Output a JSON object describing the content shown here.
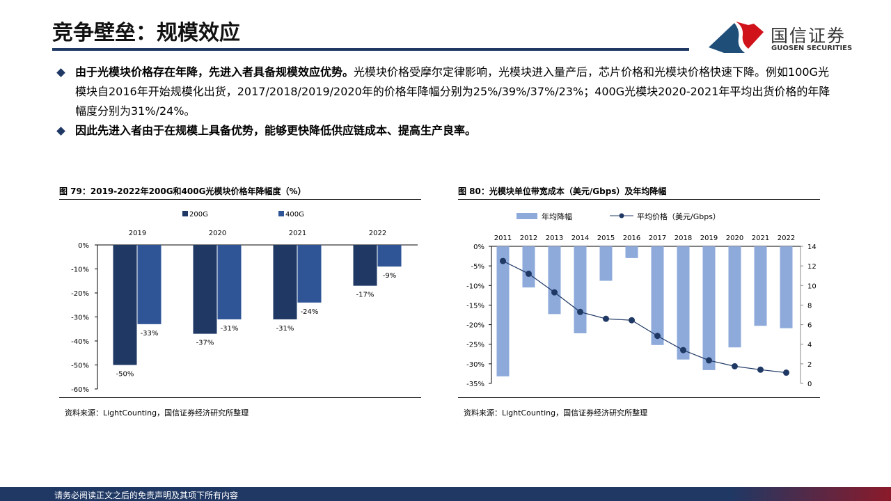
{
  "header": {
    "title": "竞争壁垒：规模效应",
    "logo_cn": "国信证券",
    "logo_en": "GUOSEN SECURITIES"
  },
  "bullets": [
    {
      "bold": "由于光模块价格存在年降，先进入者具备规模效应优势。",
      "text": "光模块价格受摩尔定律影响，光模块进入量产后，芯片价格和光模块价格快速下降。例如100G光模块自2016年开始规模化出货，2017/2018/2019/2020年的价格年降幅分别为25%/39%/37%/23%；400G光模块2020-2021年平均出货价格的年降幅度分别为31%/24%。"
    },
    {
      "bold": "因此先进入者由于在规模上具备优势，能够更快降低供应链成本、提高生产良率。",
      "text": ""
    }
  ],
  "footer": {
    "disclaimer": "请务必阅读正文之后的免责声明及其项下所有内容"
  },
  "colors": {
    "navy": "#1f3864",
    "bar200": "#1f3864",
    "bar400": "#2f5597",
    "bar_light": "#8eaadb",
    "red": "#c00000"
  },
  "chart_data": [
    {
      "type": "bar",
      "title": "图 79：2019-2022年200G和400G光模块价格年降幅度（%）",
      "categories": [
        "2019",
        "2020",
        "2021",
        "2022"
      ],
      "series": [
        {
          "name": "200G",
          "values": [
            -50,
            -37,
            -31,
            -17
          ]
        },
        {
          "name": "400G",
          "values": [
            -33,
            -31,
            -24,
            -9
          ]
        }
      ],
      "data_labels": [
        [
          "-50%",
          "-37%",
          "-31%",
          "-17%"
        ],
        [
          "-33%",
          "-31%",
          "-24%",
          "-9%"
        ]
      ],
      "yticks": [
        "0%",
        "-10%",
        "-20%",
        "-30%",
        "-40%",
        "-50%",
        "-60%"
      ],
      "ylim": [
        -60,
        0
      ],
      "legend": "top",
      "source": "资料来源：LightCounting，国信证券经济研究所整理"
    },
    {
      "type": "bar+line",
      "title": "图 80：光模块单位带宽成本（美元/Gbps）及年均降幅",
      "categories": [
        "2011",
        "2012",
        "2013",
        "2014",
        "2015",
        "2016",
        "2017",
        "2018",
        "2019",
        "2020",
        "2021",
        "2022"
      ],
      "series": [
        {
          "name": "年均降幅",
          "axis": "left",
          "values": [
            -33.2,
            -10.5,
            -17.3,
            -22.2,
            -8.8,
            -3.0,
            -25.2,
            -28.9,
            -31.6,
            -25.8,
            -20.3,
            -20.9
          ]
        },
        {
          "name": "平均价格（美元/Gbps）",
          "axis": "right",
          "values": [
            12.5,
            11.2,
            9.3,
            7.3,
            6.6,
            6.45,
            4.85,
            3.4,
            2.35,
            1.75,
            1.4,
            1.1
          ]
        }
      ],
      "yticks_left": [
        "0%",
        "-5%",
        "-10%",
        "-15%",
        "-20%",
        "-25%",
        "-30%",
        "-35%"
      ],
      "ylim_left": [
        -35,
        0
      ],
      "yticks_right": [
        "14",
        "12",
        "10",
        "8",
        "6",
        "4",
        "2",
        "0"
      ],
      "ylim_right": [
        0,
        14
      ],
      "legend": "top",
      "source": "资料来源：LightCounting，国信证券经济研究所整理"
    }
  ]
}
